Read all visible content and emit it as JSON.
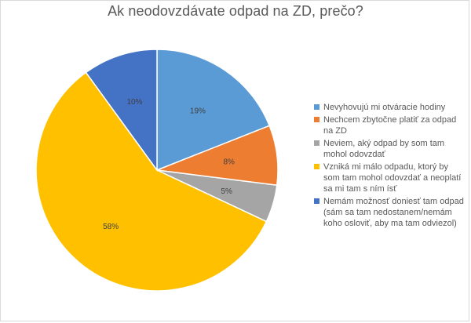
{
  "chart_data": {
    "type": "pie",
    "title": "Ak neodovzdávate odpad na ZD, prečo?",
    "categories": [
      "Nevyhovujú mi otváracie hodiny",
      "Nechcem zbytočne platiť za odpad na ZD",
      "Neviem, aký odpad by som tam mohol odovzdať",
      "Vzniká mi málo odpadu, ktorý by som tam mohol odovzdať a neoplatí sa mi tam s ním ísť",
      "Nemám možnosť doniesť tam odpad (sám sa tam nedostanem/nemám koho osloviť, aby ma tam odviezol)"
    ],
    "values": [
      19,
      8,
      5,
      58,
      10
    ],
    "labels": [
      "19%",
      "8%",
      "5%",
      "58%",
      "10%"
    ],
    "colors": [
      "#5b9bd5",
      "#ed7d31",
      "#a5a5a5",
      "#ffc000",
      "#4472c4"
    ],
    "legend_position": "right"
  }
}
